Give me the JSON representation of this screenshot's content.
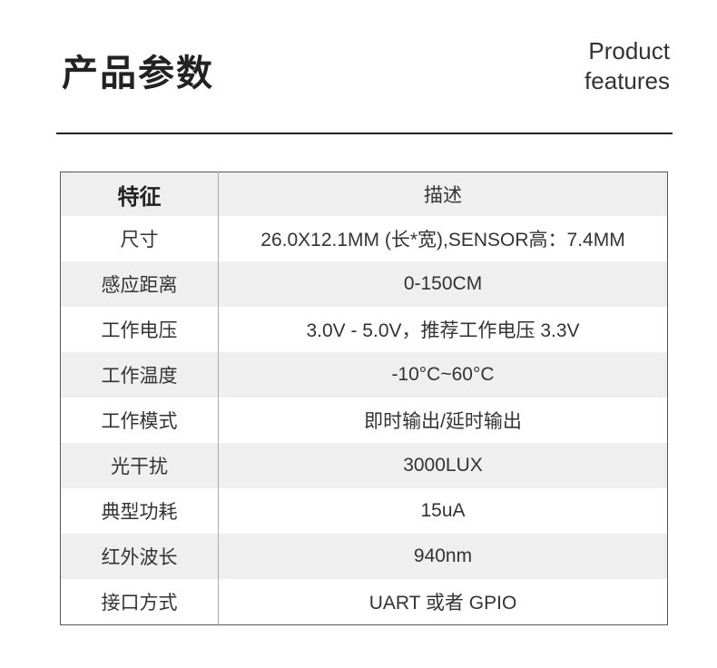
{
  "header": {
    "title": "产品参数",
    "subtitle_line1": "Product",
    "subtitle_line2": "features"
  },
  "table": {
    "columns": [
      "特征",
      "描述"
    ],
    "rows": [
      {
        "feature": "尺寸",
        "description": "26.0X12.1MM (长*宽),SENSOR高：7.4MM"
      },
      {
        "feature": "感应距离",
        "description": "0-150CM"
      },
      {
        "feature": "工作电压",
        "description": "3.0V - 5.0V，推荐工作电压 3.3V"
      },
      {
        "feature": "工作温度",
        "description": "-10°C~60°C"
      },
      {
        "feature": "工作模式",
        "description": "即时输出/延时输出"
      },
      {
        "feature": "光干扰",
        "description": "3000LUX"
      },
      {
        "feature": "典型功耗",
        "description": "15uA"
      },
      {
        "feature": "红外波长",
        "description": "940nm"
      },
      {
        "feature": "接口方式",
        "description": "UART 或者 GPIO"
      }
    ]
  }
}
